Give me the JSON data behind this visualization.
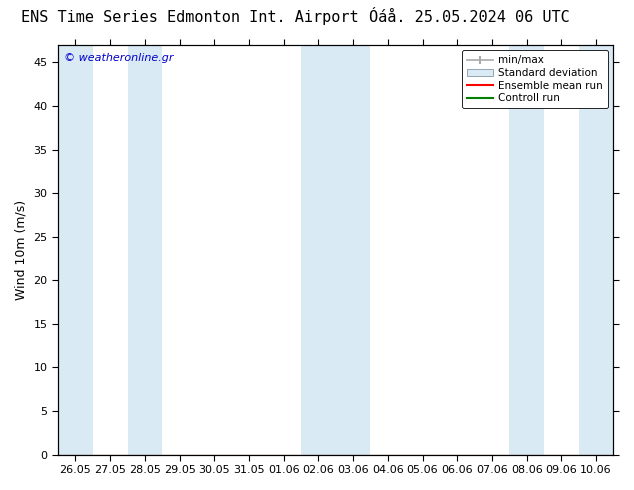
{
  "title_left": "ENS Time Series Edmonton Int. Airport",
  "title_right": "Óáå. 25.05.2024 06 UTC",
  "ylabel": "Wind 10m (m/s)",
  "watermark": "© weatheronline.gr",
  "ylim": [
    0,
    47
  ],
  "yticks": [
    0,
    5,
    10,
    15,
    20,
    25,
    30,
    35,
    40,
    45
  ],
  "x_min": 0.0,
  "x_max": 16.0,
  "xtick_labels": [
    "26.05",
    "27.05",
    "28.05",
    "29.05",
    "30.05",
    "31.05",
    "01.06",
    "02.06",
    "03.06",
    "04.06",
    "05.06",
    "06.06",
    "07.06",
    "08.06",
    "09.06",
    "10.06"
  ],
  "bg_color": "#ffffff",
  "plot_bg_color": "#ffffff",
  "shaded_band_color": "#daeaf5",
  "shaded_band_alpha": 1.0,
  "shaded_intervals": [
    [
      0.0,
      1.0
    ],
    [
      2.0,
      3.0
    ],
    [
      7.0,
      9.0
    ],
    [
      13.0,
      14.0
    ],
    [
      15.0,
      16.0
    ]
  ],
  "legend_entries": [
    "min/max",
    "Standard deviation",
    "Ensemble mean run",
    "Controll run"
  ],
  "legend_colors_line": [
    "#aaaaaa",
    "#c0d8e8",
    "#ff0000",
    "#008000"
  ],
  "tick_fontsize": 8,
  "label_fontsize": 9,
  "title_fontsize": 11,
  "watermark_color": "#0000cc",
  "watermark_fontsize": 8,
  "tick_color": "#000000",
  "spine_color": "#000000"
}
